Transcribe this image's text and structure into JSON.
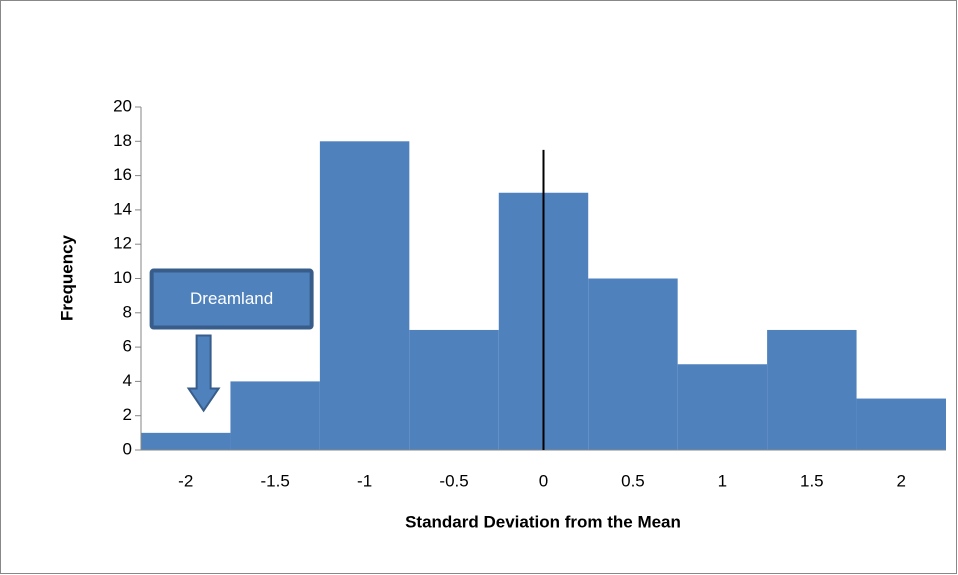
{
  "chart_data": {
    "type": "histogram",
    "xlabel": "Standard Deviation from the Mean",
    "ylabel": "Frequency",
    "bins": [
      -2.25,
      -1.75,
      -1.25,
      -0.75,
      -0.25,
      0.25,
      0.75,
      1.25,
      1.75,
      2.25
    ],
    "values": [
      1,
      4,
      18,
      7,
      15,
      10,
      5,
      7,
      3
    ],
    "color": "#4f81bd",
    "xlim": [
      -2.25,
      2.25
    ],
    "xticks": [
      -2,
      -1.5,
      -1,
      -0.5,
      0,
      0.5,
      1,
      1.5,
      2
    ],
    "ylim": [
      0,
      20
    ],
    "yticks": [
      0,
      2,
      4,
      6,
      8,
      10,
      12,
      14,
      16,
      18,
      20
    ],
    "grid": false,
    "reference_line": {
      "x": 0,
      "y": [
        0,
        17.5
      ],
      "color": "#000000"
    },
    "annotation": {
      "text": "Dreamland",
      "x": -1.9,
      "y": 2.3
    }
  }
}
